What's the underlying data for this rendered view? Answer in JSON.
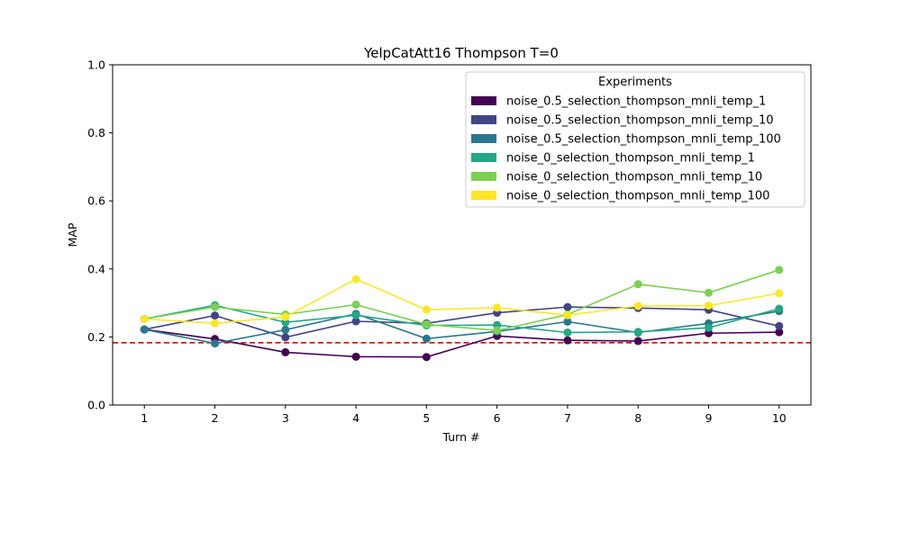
{
  "chart_data": {
    "type": "line",
    "title": "YelpCatAtt16 Thompson T=0",
    "xlabel": "Turn #",
    "ylabel": "MAP",
    "xlim": [
      0.55,
      10.45
    ],
    "ylim": [
      0,
      1.0
    ],
    "x": [
      1,
      2,
      3,
      4,
      5,
      6,
      7,
      8,
      9,
      10
    ],
    "x_ticks": [
      "1",
      "2",
      "3",
      "4",
      "5",
      "6",
      "7",
      "8",
      "9",
      "10"
    ],
    "y_ticks": [
      "0.0",
      "0.2",
      "0.4",
      "0.6",
      "0.8",
      "1.0"
    ],
    "y_tick_values": [
      0,
      0.2,
      0.4,
      0.6,
      0.8,
      1.0
    ],
    "baseline": {
      "value": 0.183,
      "color": "#e00000",
      "style": "dashed"
    },
    "grid": false,
    "legend": {
      "title": "Experiments",
      "placement": "top-right"
    },
    "series": [
      {
        "name": "noise_0.5_selection_thompson_mnli_temp_1",
        "color": "#440154",
        "values": [
          0.222,
          0.194,
          0.155,
          0.142,
          0.141,
          0.203,
          0.19,
          0.188,
          0.211,
          0.214
        ]
      },
      {
        "name": "noise_0.5_selection_thompson_mnli_temp_10",
        "color": "#414487",
        "values": [
          0.222,
          0.263,
          0.199,
          0.246,
          0.24,
          0.271,
          0.288,
          0.285,
          0.28,
          0.232
        ]
      },
      {
        "name": "noise_0.5_selection_thompson_mnli_temp_100",
        "color": "#2a788e",
        "values": [
          0.222,
          0.181,
          0.221,
          0.268,
          0.195,
          0.216,
          0.245,
          0.213,
          0.24,
          0.276
        ]
      },
      {
        "name": "noise_0_selection_thompson_mnli_temp_1",
        "color": "#22a884",
        "values": [
          0.253,
          0.293,
          0.243,
          0.264,
          0.234,
          0.235,
          0.213,
          0.215,
          0.227,
          0.283
        ]
      },
      {
        "name": "noise_0_selection_thompson_mnli_temp_10",
        "color": "#7ad151",
        "values": [
          0.253,
          0.288,
          0.266,
          0.295,
          0.237,
          0.219,
          0.266,
          0.355,
          0.33,
          0.397
        ]
      },
      {
        "name": "noise_0_selection_thompson_mnli_temp_100",
        "color": "#fde725",
        "values": [
          0.253,
          0.24,
          0.259,
          0.37,
          0.28,
          0.286,
          0.264,
          0.291,
          0.292,
          0.328
        ]
      }
    ]
  }
}
